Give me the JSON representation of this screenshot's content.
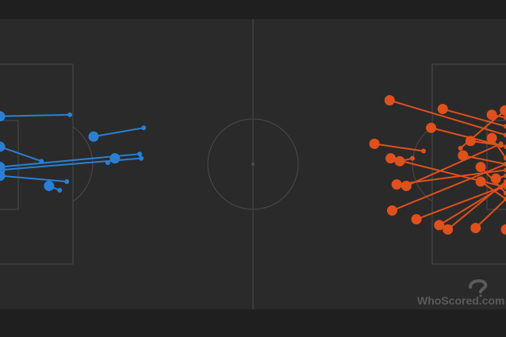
{
  "watermark": {
    "text": "WhoScored.com"
  },
  "colors": {
    "page_bg": "#1c1c1c",
    "pitch": "#2a2a2a",
    "lines": "#4a4a4a",
    "home": "#2a7fd4",
    "away": "#e0501c",
    "watermark": "#5a5a5a"
  },
  "chart_data": {
    "type": "scatter",
    "title": "",
    "description_kind": "pass-map",
    "x_range": [
      0,
      100
    ],
    "y_range": [
      0,
      100
    ],
    "series": [
      {
        "team": "home",
        "color": "#2a7fd4",
        "passes": [
          {
            "from": [
              0.0,
              33.5
            ],
            "to": [
              13.8,
              33.0
            ]
          },
          {
            "from": [
              18.5,
              40.5
            ],
            "to": [
              28.4,
              37.5
            ]
          },
          {
            "from": [
              0.0,
              44.0
            ],
            "to": [
              8.2,
              49.0
            ]
          },
          {
            "from": [
              0.0,
              51.0
            ],
            "to": [
              27.6,
              46.5
            ]
          },
          {
            "from": [
              0.0,
              52.0
            ],
            "to": [
              27.9,
              48.0
            ]
          },
          {
            "from": [
              22.7,
              48.0
            ],
            "to": [
              21.3,
              49.5
            ]
          },
          {
            "from": [
              0.0,
              54.0
            ],
            "to": [
              13.2,
              56.0
            ]
          },
          {
            "from": [
              9.7,
              57.5
            ],
            "to": [
              11.8,
              59.0
            ]
          }
        ]
      },
      {
        "team": "away",
        "color": "#e0501c",
        "passes": [
          {
            "from": [
              77.0,
              28.0
            ],
            "to": [
              100.0,
              40.0
            ]
          },
          {
            "from": [
              87.5,
              31.0
            ],
            "to": [
              100.0,
              37.0
            ]
          },
          {
            "from": [
              97.2,
              33.0
            ],
            "to": [
              100.0,
              34.0
            ]
          },
          {
            "from": [
              99.8,
              31.5
            ],
            "to": [
              91.0,
              44.5
            ]
          },
          {
            "from": [
              85.2,
              37.5
            ],
            "to": [
              100.0,
              44.0
            ]
          },
          {
            "from": [
              93.0,
              42.0
            ],
            "to": [
              99.0,
              43.5
            ]
          },
          {
            "from": [
              97.2,
              41.0
            ],
            "to": [
              100.0,
              48.0
            ]
          },
          {
            "from": [
              74.0,
              43.0
            ],
            "to": [
              83.7,
              45.5
            ]
          },
          {
            "from": [
              77.2,
              48.0
            ],
            "to": [
              100.0,
              58.0
            ]
          },
          {
            "from": [
              79.0,
              49.0
            ],
            "to": [
              81.5,
              48.0
            ]
          },
          {
            "from": [
              91.5,
              47.0
            ],
            "to": [
              100.0,
              50.0
            ]
          },
          {
            "from": [
              95.0,
              51.0
            ],
            "to": [
              100.0,
              60.0
            ]
          },
          {
            "from": [
              78.4,
              57.0
            ],
            "to": [
              100.0,
              52.0
            ]
          },
          {
            "from": [
              80.3,
              57.5
            ],
            "to": [
              99.0,
              43.0
            ]
          },
          {
            "from": [
              95.0,
              56.0
            ],
            "to": [
              100.0,
              62.0
            ]
          },
          {
            "from": [
              98.0,
              55.0
            ],
            "to": [
              100.0,
              54.0
            ]
          },
          {
            "from": [
              77.5,
              66.0
            ],
            "to": [
              100.0,
              50.0
            ]
          },
          {
            "from": [
              82.3,
              69.0
            ],
            "to": [
              99.0,
              58.0
            ]
          },
          {
            "from": [
              86.8,
              71.0
            ],
            "to": [
              100.0,
              57.0
            ]
          },
          {
            "from": [
              88.5,
              72.5
            ],
            "to": [
              100.0,
              56.0
            ]
          },
          {
            "from": [
              94.0,
              72.0
            ],
            "to": [
              100.0,
              62.0
            ]
          },
          {
            "from": [
              100.0,
              72.5
            ],
            "to": [
              100.0,
              72.5
            ]
          }
        ]
      }
    ]
  }
}
